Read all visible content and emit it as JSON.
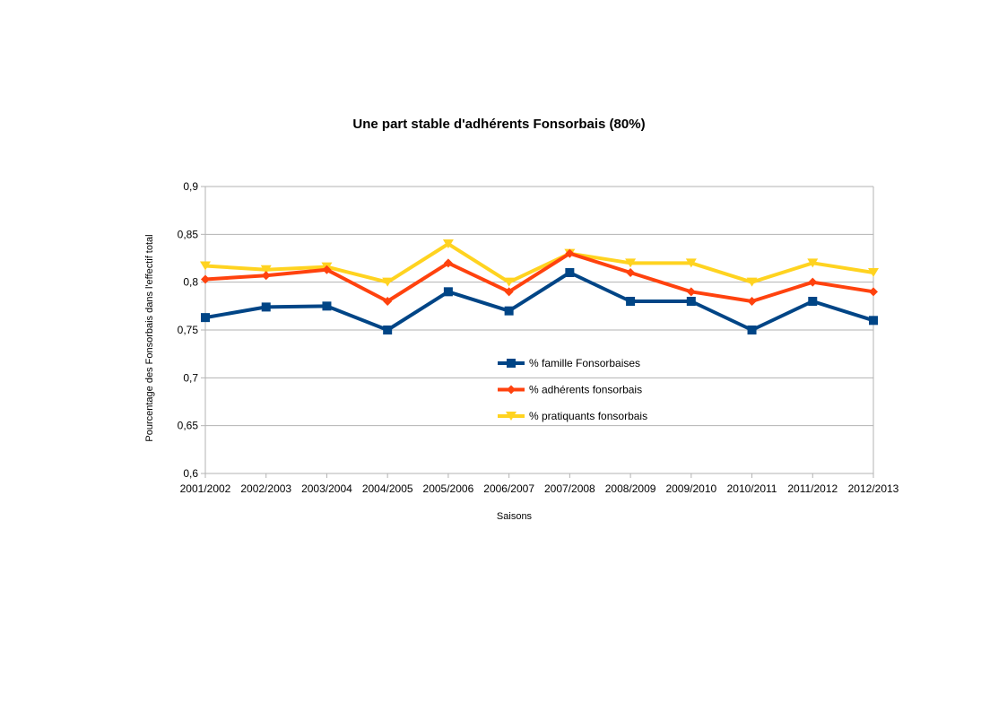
{
  "chart_data": {
    "type": "line",
    "title": "Une part stable d'adhérents Fonsorbais (80%)",
    "xlabel": "Saisons",
    "ylabel": "Pourcentage des Fonsorbais dans l'effectif total",
    "ylim": [
      0.6,
      0.9
    ],
    "yticks": [
      0.6,
      0.65,
      0.7,
      0.75,
      0.8,
      0.85,
      0.9
    ],
    "ytick_labels": [
      "0,6",
      "0,65",
      "0,7",
      "0,75",
      "0,8",
      "0,85",
      "0,9"
    ],
    "grid": true,
    "legend_position": "inside-center",
    "categories": [
      "2001/2002",
      "2002/2003",
      "2003/2004",
      "2004/2005",
      "2005/2006",
      "2006/2007",
      "2007/2008",
      "2008/2009",
      "2009/2010",
      "2010/2011",
      "2011/2012",
      "2012/2013"
    ],
    "series": [
      {
        "name": "% famille Fonsorbaises",
        "color": "#004586",
        "marker": "square",
        "values": [
          0.763,
          0.774,
          0.775,
          0.75,
          0.79,
          0.77,
          0.81,
          0.78,
          0.78,
          0.75,
          0.78,
          0.76
        ]
      },
      {
        "name": "% adhérents fonsorbais",
        "color": "#ff420e",
        "marker": "diamond",
        "values": [
          0.803,
          0.807,
          0.813,
          0.78,
          0.82,
          0.79,
          0.83,
          0.81,
          0.79,
          0.78,
          0.8,
          0.79
        ]
      },
      {
        "name": "% pratiquants fonsorbais",
        "color": "#ffd320",
        "marker": "triangle-down",
        "values": [
          0.817,
          0.813,
          0.816,
          0.8,
          0.84,
          0.8,
          0.83,
          0.82,
          0.82,
          0.8,
          0.82,
          0.81
        ]
      }
    ]
  }
}
